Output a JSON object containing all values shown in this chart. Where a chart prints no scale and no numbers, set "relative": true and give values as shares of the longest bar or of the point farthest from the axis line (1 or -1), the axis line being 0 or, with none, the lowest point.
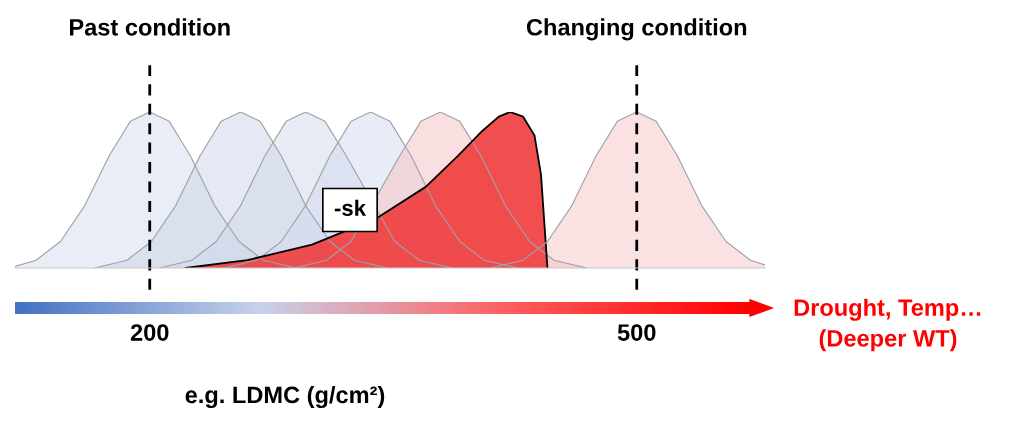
{
  "chart_data": {
    "type": "area",
    "relative": true,
    "xlabel": "e.g. LDMC (g/cm²)",
    "xlim": [
      117,
      579
    ],
    "xticks": [
      200,
      500
    ],
    "grid": false,
    "series": [
      {
        "color": "#d3dbeb",
        "x": [
          117,
          130,
          145,
          160,
          175,
          188,
          200,
          212,
          225,
          240,
          255,
          270,
          290
        ],
        "values": [
          0.01,
          0.05,
          0.17,
          0.4,
          0.72,
          0.94,
          1,
          0.94,
          0.72,
          0.4,
          0.17,
          0.05,
          0
        ]
      },
      {
        "color": "#c9d3e8",
        "x": [
          166,
          186,
          201,
          216,
          231,
          244,
          256,
          268,
          281,
          296,
          311,
          326,
          346
        ],
        "values": [
          0,
          0.05,
          0.17,
          0.4,
          0.72,
          0.94,
          1,
          0.94,
          0.72,
          0.4,
          0.17,
          0.05,
          0
        ]
      },
      {
        "color": "#cfd7ea",
        "x": [
          206,
          226,
          241,
          256,
          271,
          284,
          296,
          308,
          321,
          336,
          351,
          366,
          386
        ],
        "values": [
          0,
          0.05,
          0.17,
          0.4,
          0.72,
          0.94,
          1,
          0.94,
          0.72,
          null,
          0.17,
          0.05,
          0
        ]
      },
      {
        "color": "#d2d9ee",
        "x": [
          246,
          266,
          281,
          296,
          311,
          324,
          336,
          348,
          361,
          376,
          391,
          406,
          426
        ],
        "values": [
          0,
          0.05,
          0.17,
          0.4,
          0.72,
          0.94,
          1,
          0.94,
          0.72,
          0.4,
          0.17,
          0.05,
          0
        ]
      },
      {
        "color": "#f3c0c0",
        "x": [
          289,
          309,
          324,
          339,
          354,
          367,
          379,
          391,
          404,
          419,
          434,
          449,
          469
        ],
        "values": [
          0,
          0.05,
          0.17,
          null,
          0.72,
          0.94,
          1,
          0.94,
          0.72,
          0.4,
          0.17,
          0.05,
          0
        ]
      },
      {
        "color": "#f03c3c",
        "x": [
          222,
          260,
          300,
          340,
          370,
          390,
          405,
          415,
          422,
          430,
          437,
          441,
          443,
          445
        ],
        "values": [
          0,
          0.05,
          0.15,
          0.32,
          0.52,
          0.72,
          0.88,
          0.97,
          1,
          0.97,
          0.85,
          0.6,
          0.3,
          0
        ]
      },
      {
        "color": "#f6c6c6",
        "x": [
          410,
          430,
          445,
          460,
          475,
          488,
          500,
          512,
          525,
          540,
          555,
          570,
          579
        ],
        "values": [
          0,
          0.05,
          0.17,
          0.4,
          0.72,
          0.94,
          1,
          0.94,
          0.72,
          0.4,
          0.17,
          0.05,
          0.02
        ]
      }
    ],
    "ref_lines": [
      {
        "axis": "x",
        "value": 200,
        "label": "Past condition",
        "line_style": "dashed",
        "color": "#000000"
      },
      {
        "axis": "x",
        "value": 500,
        "label": "Changing condition",
        "line_style": "dashed",
        "color": "#000000"
      }
    ],
    "annotations": [
      "-sk",
      "Drought, Temp…\n(Deeper WT)"
    ]
  }
}
